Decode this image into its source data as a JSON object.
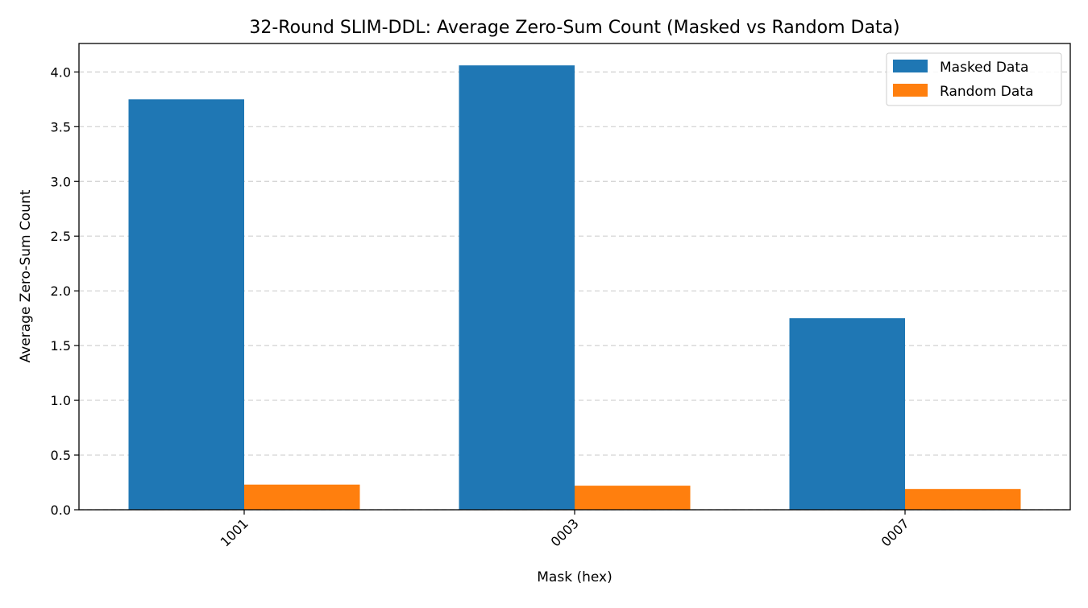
{
  "chart_data": {
    "type": "bar",
    "title": "32-Round SLIM-DDL: Average Zero-Sum Count (Masked vs Random Data)",
    "xlabel": "Mask (hex)",
    "ylabel": "Average Zero-Sum Count",
    "categories": [
      "1001",
      "0003",
      "0007"
    ],
    "series": [
      {
        "name": "Masked Data",
        "color": "#1f77b4",
        "values": [
          3.75,
          4.06,
          1.75
        ]
      },
      {
        "name": "Random Data",
        "color": "#ff7f0e",
        "values": [
          0.23,
          0.22,
          0.19
        ]
      }
    ],
    "ylim": [
      0,
      4.26
    ],
    "yticks": [
      "0.0",
      "0.5",
      "1.0",
      "1.5",
      "2.0",
      "2.5",
      "3.0",
      "3.5",
      "4.0"
    ],
    "grid": "y, dashed",
    "legend": "top-right",
    "xtick_rotation": 45
  }
}
